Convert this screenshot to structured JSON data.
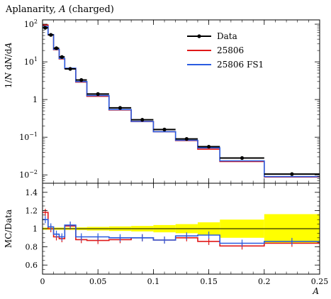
{
  "chart_data": {
    "type": "line",
    "title": "Aplanarity, A (charged)",
    "title_main": "Aplanarity, ",
    "title_italic": "A",
    "title_suffix": " (charged)",
    "xlabel": "A",
    "upper": {
      "ylabel": "1/N dN/dA",
      "yscale": "log",
      "ylim": [
        0.006,
        130
      ],
      "yticks": [
        {
          "value": 100,
          "base": "10",
          "exp": "2"
        },
        {
          "value": 10,
          "base": "10",
          "exp": "1"
        },
        {
          "value": 1,
          "base": "1",
          "exp": ""
        },
        {
          "value": 0.1,
          "base": "10",
          "exp": "−1"
        },
        {
          "value": 0.01,
          "base": "10",
          "exp": "−2"
        }
      ],
      "legend_position": "top-right",
      "data": {
        "name": "Data",
        "x": [
          0.0025,
          0.0075,
          0.0125,
          0.0175,
          0.025,
          0.035,
          0.05,
          0.07,
          0.09,
          0.11,
          0.13,
          0.15,
          0.18,
          0.225
        ],
        "y": [
          80,
          52,
          23,
          13.5,
          6.5,
          3.3,
          1.4,
          0.6,
          0.29,
          0.16,
          0.09,
          0.056,
          0.028,
          0.0105
        ],
        "xerr": [
          0.0025,
          0.0025,
          0.0025,
          0.0025,
          0.005,
          0.005,
          0.01,
          0.01,
          0.01,
          0.01,
          0.01,
          0.01,
          0.02,
          0.025
        ]
      },
      "series": [
        {
          "name": "25806",
          "color": "#e01818",
          "edges": [
            0,
            0.005,
            0.01,
            0.015,
            0.02,
            0.03,
            0.04,
            0.06,
            0.08,
            0.1,
            0.12,
            0.14,
            0.16,
            0.2,
            0.25
          ],
          "values": [
            95,
            52,
            21,
            12,
            6.7,
            2.9,
            1.22,
            0.53,
            0.26,
            0.14,
            0.081,
            0.048,
            0.0225,
            0.0088
          ]
        },
        {
          "name": "25806 FS1",
          "color": "#2a5ce0",
          "edges": [
            0,
            0.005,
            0.01,
            0.015,
            0.02,
            0.03,
            0.04,
            0.06,
            0.08,
            0.1,
            0.12,
            0.14,
            0.16,
            0.2,
            0.25
          ],
          "values": [
            88,
            53,
            21.5,
            12.3,
            6.8,
            3.0,
            1.27,
            0.54,
            0.262,
            0.14,
            0.083,
            0.052,
            0.0235,
            0.009
          ]
        }
      ]
    },
    "lower": {
      "ylabel": "MC/Data",
      "ylim": [
        0.5,
        1.5
      ],
      "yticks": [
        0.6,
        0.8,
        1,
        1.2,
        1.4
      ],
      "band_color": "#ffff00",
      "band": {
        "edges": [
          0,
          0.005,
          0.01,
          0.015,
          0.02,
          0.03,
          0.04,
          0.06,
          0.08,
          0.1,
          0.12,
          0.14,
          0.16,
          0.2,
          0.25
        ],
        "half_width": [
          0.012,
          0.012,
          0.012,
          0.012,
          0.013,
          0.015,
          0.02,
          0.025,
          0.03,
          0.04,
          0.05,
          0.07,
          0.1,
          0.16
        ]
      },
      "series": [
        {
          "name": "25806",
          "color": "#e01818",
          "values": [
            1.18,
            1.0,
            0.91,
            0.89,
            1.03,
            0.88,
            0.87,
            0.88,
            0.9,
            0.875,
            0.9,
            0.86,
            0.81,
            0.84
          ]
        },
        {
          "name": "25806 FS1",
          "color": "#2a5ce0",
          "values": [
            1.1,
            1.02,
            0.94,
            0.91,
            1.04,
            0.91,
            0.91,
            0.9,
            0.9,
            0.875,
            0.92,
            0.93,
            0.84,
            0.86
          ]
        }
      ]
    },
    "xlim": [
      0,
      0.25
    ],
    "xticks": [
      0,
      0.05,
      0.1,
      0.15,
      0.2,
      0.25
    ],
    "xtick_labels": [
      "0",
      "0.05",
      "0.1",
      "0.15",
      "0.2",
      "0.25"
    ]
  }
}
